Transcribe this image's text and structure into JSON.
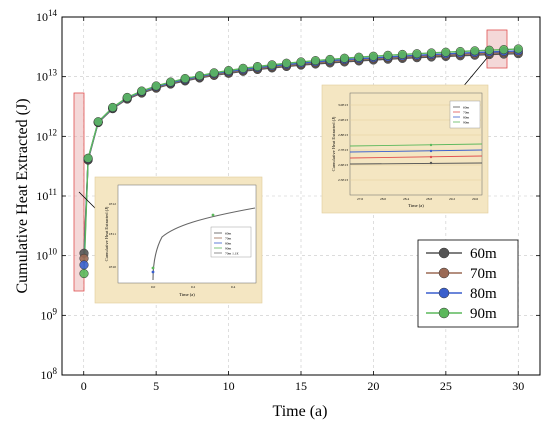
{
  "chart_data": {
    "type": "line",
    "title": "",
    "xlabel": "Time (a)",
    "ylabel": "Cumulative Heat Extracted (J)",
    "xlim": [
      -1.5,
      31.5
    ],
    "ylim_log10": [
      8,
      14
    ],
    "y_scale": "log",
    "x_ticks": [
      0,
      5,
      10,
      15,
      20,
      25,
      30
    ],
    "x_tick_labels": [
      "0",
      "5",
      "10",
      "15",
      "20",
      "25",
      "30"
    ],
    "y_ticks_exp": [
      8,
      9,
      10,
      11,
      12,
      13,
      14
    ],
    "grid": true,
    "legend_position": "bottom-right",
    "x": [
      0.02,
      0.3,
      1,
      2,
      3,
      4,
      5,
      6,
      7,
      8,
      9,
      10,
      11,
      12,
      13,
      14,
      15,
      16,
      17,
      18,
      19,
      20,
      21,
      22,
      23,
      24,
      25,
      26,
      27,
      28,
      29,
      30
    ],
    "series": [
      {
        "name": "60m",
        "color": "#555555",
        "values": [
          11000000000.0,
          400000000000.0,
          1700000000000.0,
          2900000000000.0,
          4200000000000.0,
          5300000000000.0,
          6400000000000.0,
          7500000000000.0,
          8500000000000.0,
          9500000000000.0,
          10500000000000.0,
          11400000000000.0,
          12300000000000.0,
          13200000000000.0,
          14000000000000.0,
          14800000000000.0,
          15600000000000.0,
          16300000000000.0,
          17000000000000.0,
          17700000000000.0,
          18400000000000.0,
          19000000000000.0,
          19600000000000.0,
          20200000000000.0,
          20800000000000.0,
          21400000000000.0,
          21900000000000.0,
          22400000000000.0,
          22900000000000.0,
          23400000000000.0,
          23900000000000.0,
          24300000000000.0
        ]
      },
      {
        "name": "70m",
        "color": "#9b6a55",
        "values": [
          9000000000.0,
          410000000000.0,
          1720000000000.0,
          2950000000000.0,
          4300000000000.0,
          5450000000000.0,
          6600000000000.0,
          7700000000000.0,
          8800000000000.0,
          9800000000000.0,
          10800000000000.0,
          11800000000000.0,
          12800000000000.0,
          13700000000000.0,
          14600000000000.0,
          15400000000000.0,
          16200000000000.0,
          17000000000000.0,
          17800000000000.0,
          18500000000000.0,
          19200000000000.0,
          19900000000000.0,
          20600000000000.0,
          21200000000000.0,
          21800000000000.0,
          22400000000000.0,
          23000000000000.0,
          23600000000000.0,
          24100000000000.0,
          24700000000000.0,
          25200000000000.0,
          25700000000000.0
        ]
      },
      {
        "name": "80m",
        "color": "#3a5fcd",
        "values": [
          7000000000.0,
          420000000000.0,
          1740000000000.0,
          3000000000000.0,
          4400000000000.0,
          5600000000000.0,
          6800000000000.0,
          7900000000000.0,
          9000000000000.0,
          10100000000000.0,
          11200000000000.0,
          12200000000000.0,
          13200000000000.0,
          14200000000000.0,
          15100000000000.0,
          16000000000000.0,
          16800000000000.0,
          17700000000000.0,
          18500000000000.0,
          19300000000000.0,
          20000000000000.0,
          20700000000000.0,
          21400000000000.0,
          22100000000000.0,
          22800000000000.0,
          23400000000000.0,
          24100000000000.0,
          24700000000000.0,
          25300000000000.0,
          25900000000000.0,
          26400000000000.0,
          27000000000000.0
        ]
      },
      {
        "name": "90m",
        "color": "#5cb85c",
        "values": [
          5000000000.0,
          430000000000.0,
          1760000000000.0,
          3050000000000.0,
          4500000000000.0,
          5750000000000.0,
          7000000000000.0,
          8150000000000.0,
          9300000000000.0,
          10400000000000.0,
          11600000000000.0,
          12700000000000.0,
          13800000000000.0,
          14800000000000.0,
          15800000000000.0,
          16800000000000.0,
          17700000000000.0,
          18600000000000.0,
          19500000000000.0,
          20400000000000.0,
          21200000000000.0,
          22000000000000.0,
          22800000000000.0,
          23600000000000.0,
          24300000000000.0,
          25000000000000.0,
          25700000000000.0,
          26400000000000.0,
          27100000000000.0,
          27800000000000.0,
          28400000000000.0,
          29200000000000.0
        ]
      }
    ],
    "insets": [
      {
        "ylabel": "Cumulative Heat Extracted (J)",
        "xlabel": "Time (a)",
        "x_tick_labels": [
          "0.0",
          "0.2",
          "0.4"
        ],
        "y_tick_labels": [
          "1E10",
          "1E11",
          "1E12"
        ],
        "legend": [
          "60m",
          "70m",
          "80m",
          "90m",
          "70m 1.1E"
        ]
      },
      {
        "ylabel": "Cumulative Heat Extracted (J)",
        "xlabel": "Time (a)",
        "x_tick_labels": [
          "27.6",
          "28.0",
          "28.4",
          "28.8",
          "29.2",
          "29.6"
        ],
        "y_tick_labels": [
          "2.5E13",
          "2.6E13",
          "2.7E13",
          "2.8E13",
          "2.9E13",
          "3.0E13"
        ],
        "legend": [
          "60m",
          "70m",
          "80m",
          "90m"
        ]
      }
    ]
  }
}
